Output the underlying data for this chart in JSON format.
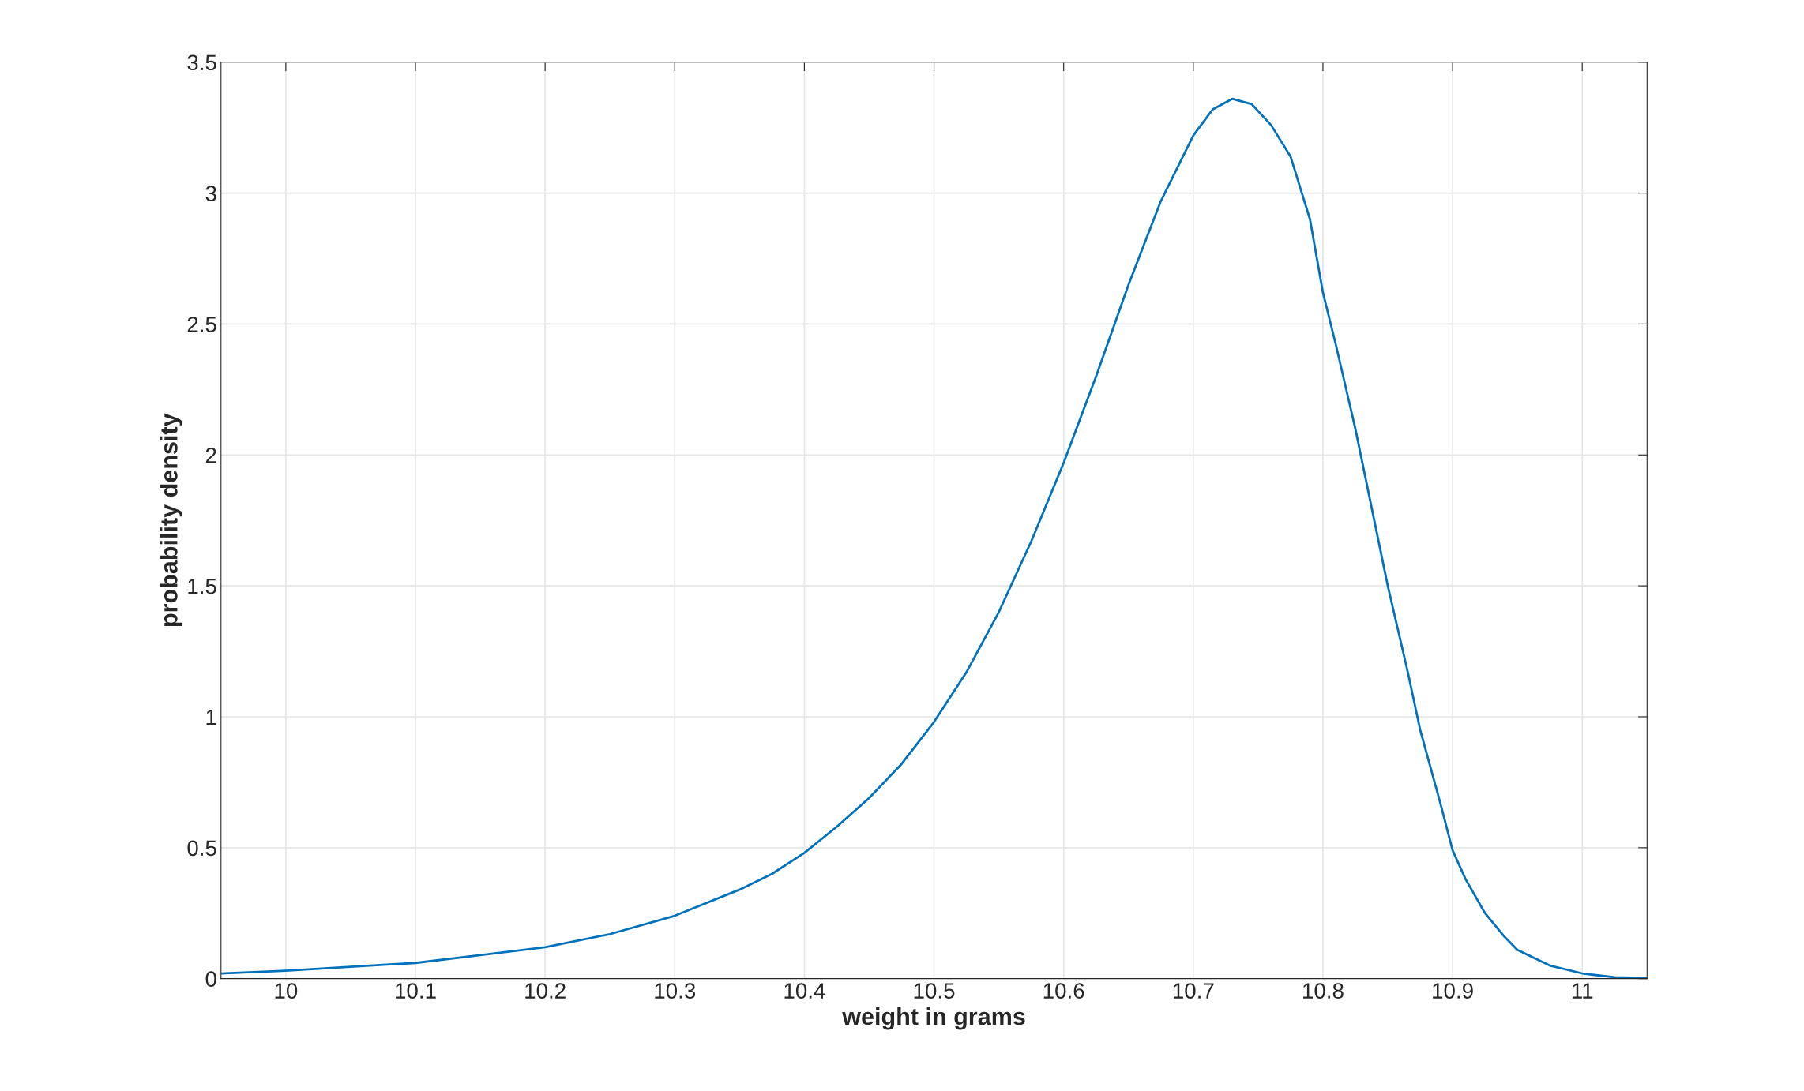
{
  "chart_data": {
    "type": "line",
    "xlabel": "weight in grams",
    "ylabel": "probability density",
    "x": [
      9.95,
      10.0,
      10.05,
      10.1,
      10.15,
      10.2,
      10.25,
      10.3,
      10.35,
      10.375,
      10.4,
      10.425,
      10.45,
      10.475,
      10.5,
      10.525,
      10.55,
      10.575,
      10.6,
      10.625,
      10.65,
      10.675,
      10.7,
      10.715,
      10.73,
      10.745,
      10.76,
      10.775,
      10.79,
      10.8,
      10.81,
      10.825,
      10.85,
      10.865,
      10.875,
      10.89,
      10.9,
      10.91,
      10.925,
      10.94,
      10.95,
      10.975,
      11.0,
      11.025,
      11.05
    ],
    "series": [
      {
        "color": "#0072bd",
        "values": [
          0.02,
          0.03,
          0.045,
          0.06,
          0.09,
          0.12,
          0.17,
          0.24,
          0.34,
          0.4,
          0.48,
          0.58,
          0.69,
          0.82,
          0.98,
          1.17,
          1.4,
          1.67,
          1.97,
          2.3,
          2.65,
          2.97,
          3.22,
          3.32,
          3.36,
          3.34,
          3.26,
          3.14,
          2.9,
          2.62,
          2.42,
          2.1,
          1.5,
          1.18,
          0.95,
          0.68,
          0.49,
          0.38,
          0.25,
          0.16,
          0.11,
          0.05,
          0.02,
          0.005,
          0.002
        ]
      }
    ],
    "xlim": [
      9.95,
      11.05
    ],
    "ylim": [
      0,
      3.5
    ],
    "xticks": [
      10,
      10.1,
      10.2,
      10.3,
      10.4,
      10.5,
      10.6,
      10.7,
      10.8,
      10.9,
      11
    ],
    "yticks": [
      0,
      0.5,
      1,
      1.5,
      2,
      2.5,
      3,
      3.5
    ],
    "grid": true
  }
}
